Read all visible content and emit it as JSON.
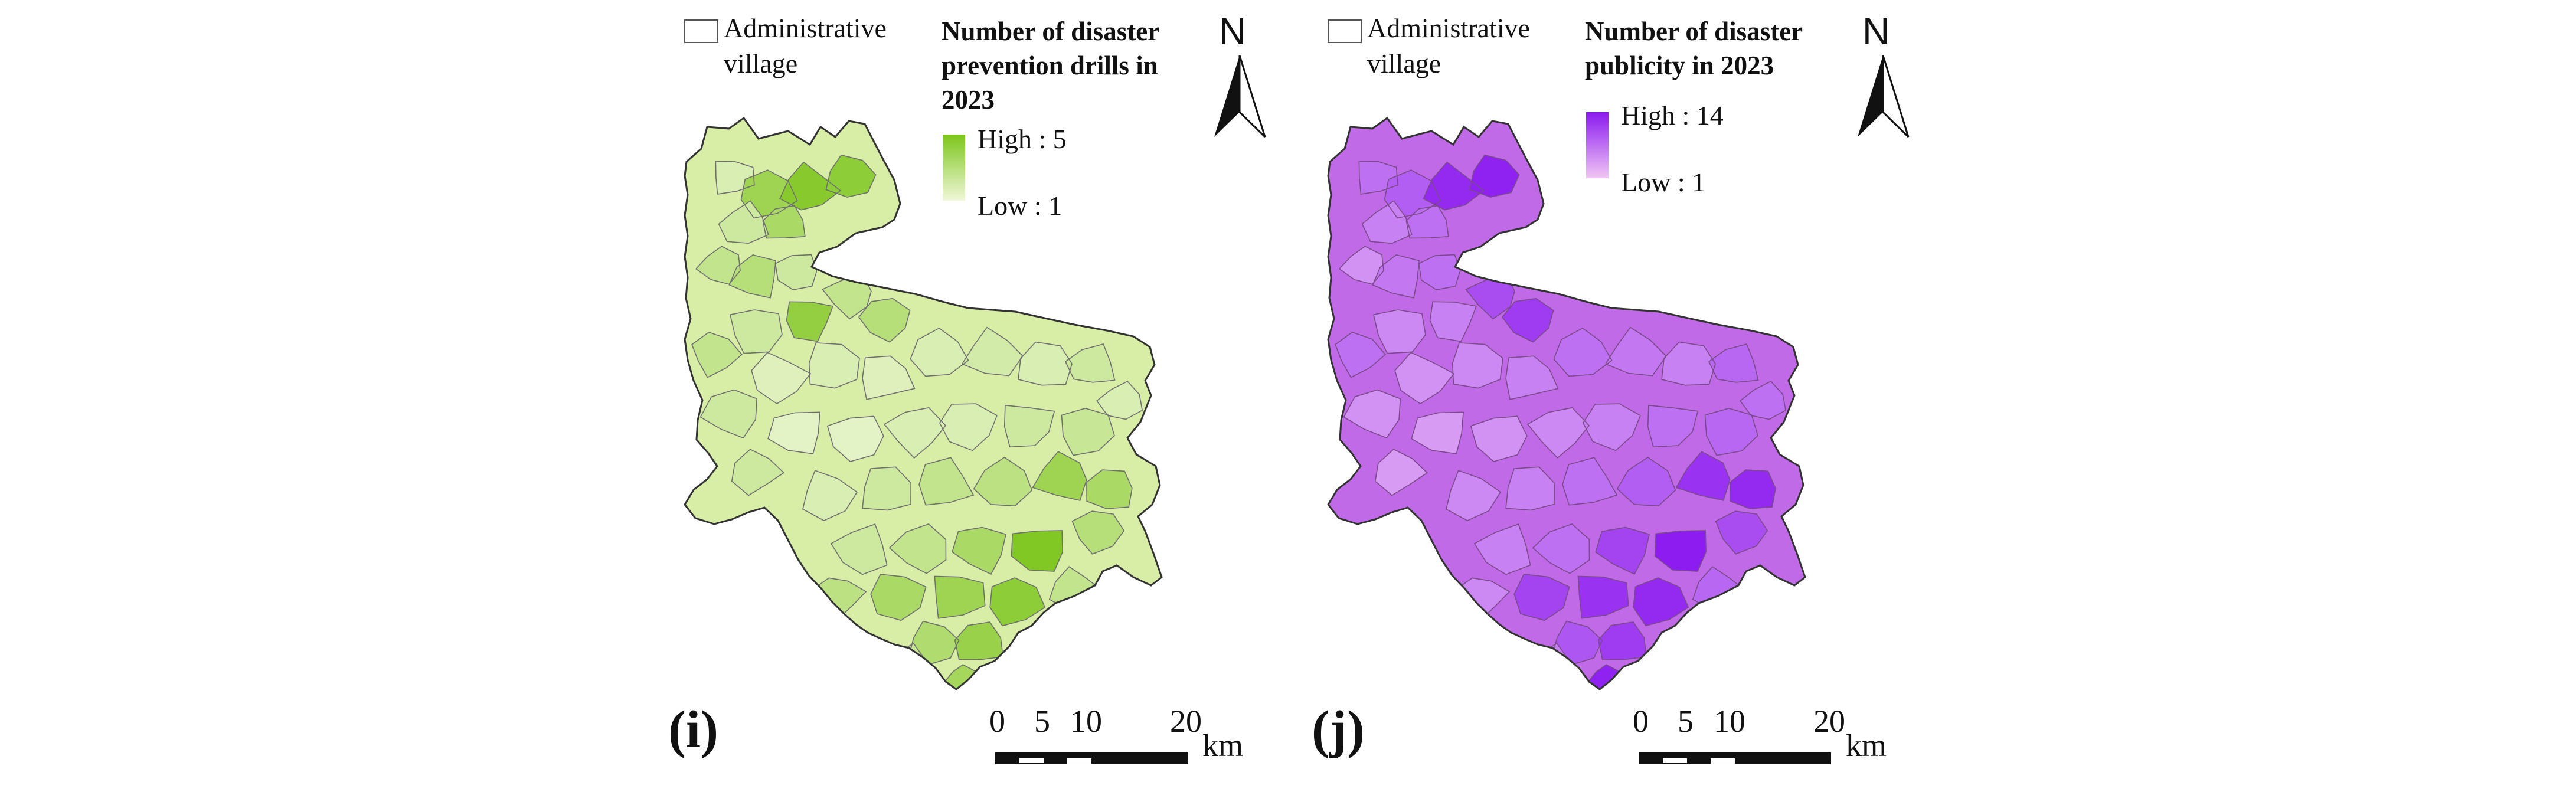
{
  "panels": [
    {
      "label": "(i)",
      "legend_boundary": "Administrative village",
      "legend_boundary_lines": [
        "Administrative",
        "village"
      ],
      "title_lines": [
        "Number of disaster",
        "prevention drills in",
        "2023"
      ],
      "high_label": "High : 5",
      "low_label": "Low : 1",
      "colors": {
        "low": "#f0f8d8",
        "high": "#7cc51a",
        "mid": "#c9e688"
      },
      "north_label": "N",
      "scale": {
        "ticks": [
          "0",
          "5",
          "10",
          "20"
        ],
        "unit": "km"
      }
    },
    {
      "label": "(j)",
      "legend_boundary": "Administrative village",
      "legend_boundary_lines": [
        "Administrative",
        "village"
      ],
      "title_lines": [
        "Number of disaster",
        "publicity in 2023"
      ],
      "high_label": "High : 14",
      "low_label": "Low : 1",
      "colors": {
        "low": "#f1c6f4",
        "high": "#8a19f0",
        "mid": "#c566ec"
      },
      "north_label": "N",
      "scale": {
        "ticks": [
          "0",
          "5",
          "10",
          "20"
        ],
        "unit": "km"
      }
    }
  ]
}
